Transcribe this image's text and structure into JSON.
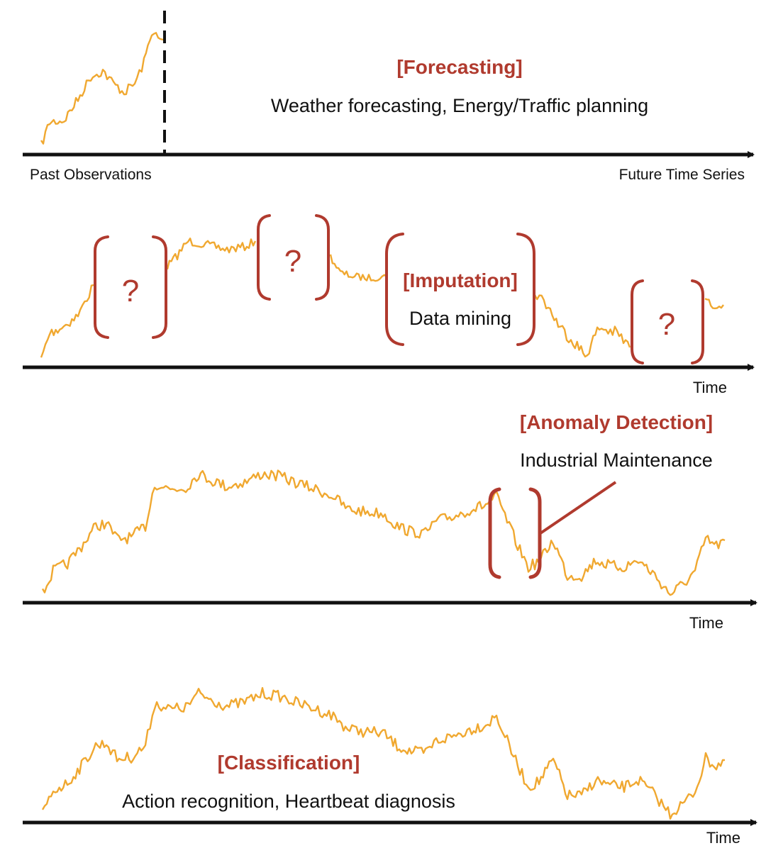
{
  "colors": {
    "series": "#f0a830",
    "accent": "#b03a2e",
    "axis": "#111111"
  },
  "panels": {
    "forecasting": {
      "heading": "[Forecasting]",
      "description": "Weather forecasting, Energy/Traffic planning",
      "left_label": "Past Observations",
      "right_label": "Future Time Series"
    },
    "imputation": {
      "heading": "[Imputation]",
      "description": "Data mining",
      "missing_marker": "?",
      "axis_label": "Time"
    },
    "anomaly": {
      "heading": "[Anomaly Detection]",
      "description": "Industrial Maintenance",
      "axis_label": "Time"
    },
    "classification": {
      "heading": "[Classification]",
      "description": "Action recognition, Heartbeat diagnosis",
      "axis_label": "Time"
    }
  }
}
